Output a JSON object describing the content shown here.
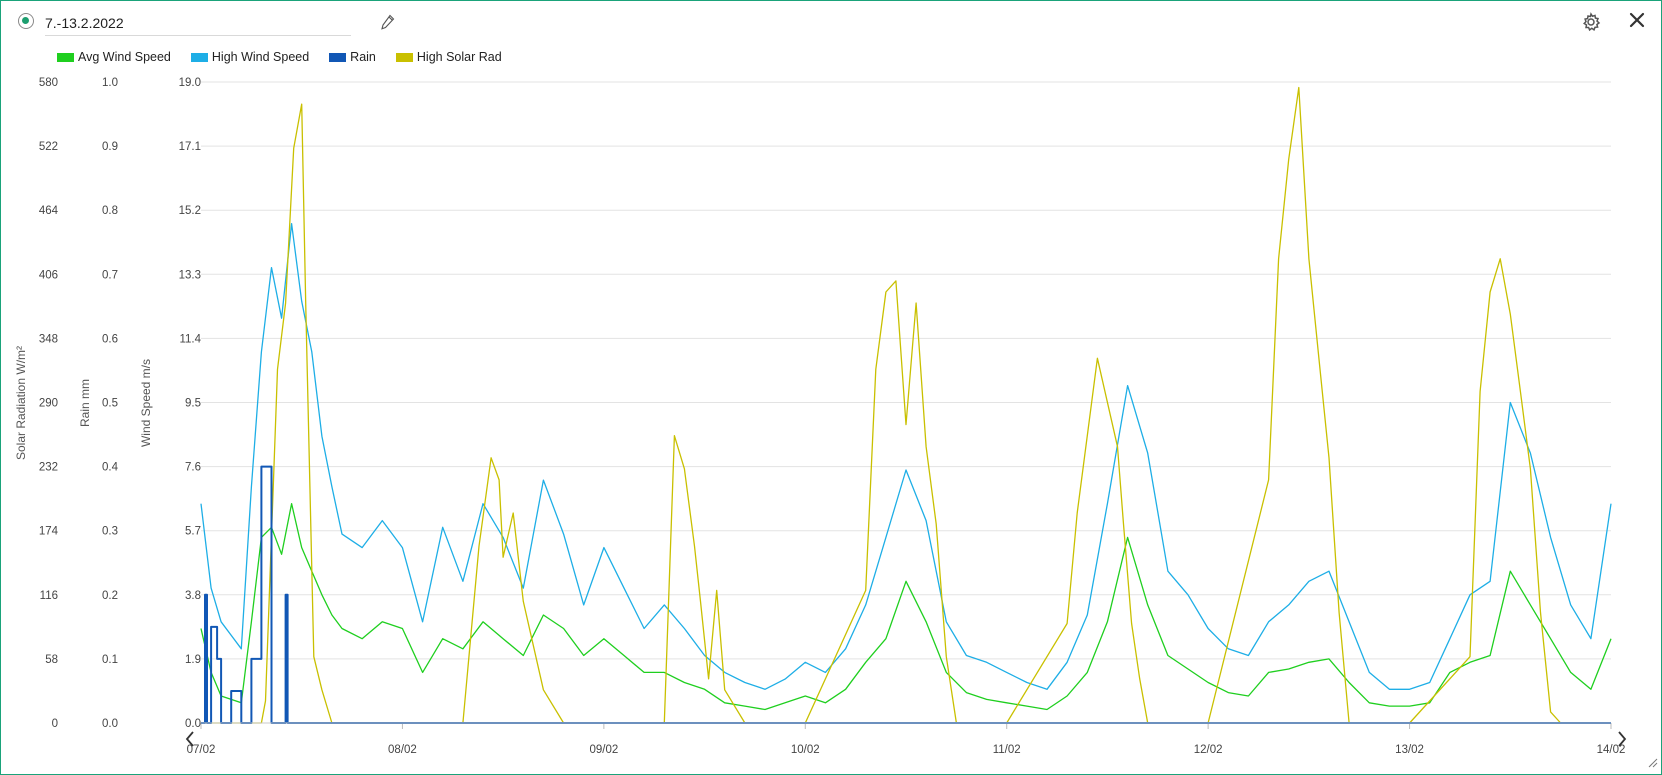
{
  "header": {
    "title_value": "7.-13.2.2022"
  },
  "icons": {
    "status": "radio-dot-icon",
    "edit": "pencil-icon",
    "settings": "gear-icon",
    "close": "close-icon",
    "prev": "chevron-left-icon",
    "next": "chevron-right-icon",
    "resize": "resize-grip-icon"
  },
  "colors": {
    "avg_wind": "#1fcf1f",
    "high_wind": "#1eaee6",
    "rain": "#1157b5",
    "solar": "#c9c000",
    "frame_border": "#1aa37a"
  },
  "legend": [
    {
      "label": "Avg Wind Speed",
      "color": "#1fcf1f"
    },
    {
      "label": "High Wind Speed",
      "color": "#1eaee6"
    },
    {
      "label": "Rain",
      "color": "#1157b5"
    },
    {
      "label": "High Solar Rad",
      "color": "#c9c000"
    }
  ],
  "chart_data": {
    "type": "line",
    "grid": true,
    "legend_position": "top-left",
    "x_axis": {
      "range": [
        "07/02",
        "14/02"
      ],
      "tick_labels": [
        "07/02",
        "08/02",
        "09/02",
        "10/02",
        "11/02",
        "12/02",
        "13/02",
        "14/02"
      ]
    },
    "y_axes": [
      {
        "label": "Solar Radiation W/m²",
        "range": [
          0,
          580
        ],
        "ticks": [
          "0",
          "58",
          "116",
          "174",
          "232",
          "290",
          "348",
          "406",
          "464",
          "522",
          "580"
        ]
      },
      {
        "label": "Rain mm",
        "range": [
          0,
          1.0
        ],
        "ticks": [
          "0.0",
          "0.1",
          "0.2",
          "0.3",
          "0.4",
          "0.5",
          "0.6",
          "0.7",
          "0.8",
          "0.9",
          "1.0"
        ]
      },
      {
        "label": "Wind Speed m/s",
        "range": [
          0,
          19.0
        ],
        "ticks": [
          "0.0",
          "1.9",
          "3.8",
          "5.7",
          "7.6",
          "9.5",
          "11.4",
          "13.3",
          "15.2",
          "17.1",
          "19.0"
        ]
      }
    ],
    "series": [
      {
        "name": "High Wind Speed",
        "axis": 2,
        "color": "#1eaee6",
        "x": [
          0,
          0.05,
          0.1,
          0.2,
          0.25,
          0.3,
          0.35,
          0.4,
          0.45,
          0.5,
          0.55,
          0.6,
          0.65,
          0.7,
          0.8,
          0.9,
          1.0,
          1.1,
          1.2,
          1.3,
          1.4,
          1.5,
          1.6,
          1.7,
          1.8,
          1.9,
          2.0,
          2.1,
          2.2,
          2.3,
          2.4,
          2.5,
          2.6,
          2.7,
          2.8,
          2.9,
          3.0,
          3.1,
          3.2,
          3.3,
          3.4,
          3.5,
          3.6,
          3.7,
          3.8,
          3.9,
          4.0,
          4.1,
          4.2,
          4.3,
          4.4,
          4.5,
          4.6,
          4.7,
          4.8,
          4.9,
          5.0,
          5.1,
          5.2,
          5.3,
          5.4,
          5.5,
          5.6,
          5.7,
          5.8,
          5.9,
          6.0,
          6.1,
          6.2,
          6.3,
          6.4,
          6.5,
          6.6,
          6.7,
          6.8,
          6.9,
          7.0
        ],
        "y": [
          6.5,
          4.0,
          3.0,
          2.2,
          7.0,
          11.0,
          13.5,
          12.0,
          14.8,
          12.5,
          11.0,
          8.5,
          7.0,
          5.6,
          5.2,
          6.0,
          5.2,
          3.0,
          5.8,
          4.2,
          6.5,
          5.5,
          4.0,
          7.2,
          5.6,
          3.5,
          5.2,
          4.0,
          2.8,
          3.5,
          2.8,
          2.0,
          1.5,
          1.2,
          1.0,
          1.3,
          1.8,
          1.5,
          2.2,
          3.5,
          5.5,
          7.5,
          6.0,
          3.0,
          2.0,
          1.8,
          1.5,
          1.2,
          1.0,
          1.8,
          3.2,
          6.5,
          10.0,
          8.0,
          4.5,
          3.8,
          2.8,
          2.2,
          2.0,
          3.0,
          3.5,
          4.2,
          4.5,
          3.0,
          1.5,
          1.0,
          1.0,
          1.2,
          2.5,
          3.8,
          4.2,
          9.5,
          8.0,
          5.5,
          3.5,
          2.5,
          6.5
        ]
      },
      {
        "name": "Avg Wind Speed",
        "axis": 2,
        "color": "#1fcf1f",
        "x": [
          0,
          0.05,
          0.1,
          0.2,
          0.25,
          0.3,
          0.35,
          0.4,
          0.45,
          0.5,
          0.55,
          0.6,
          0.65,
          0.7,
          0.8,
          0.9,
          1.0,
          1.1,
          1.2,
          1.3,
          1.4,
          1.5,
          1.6,
          1.7,
          1.8,
          1.9,
          2.0,
          2.1,
          2.2,
          2.3,
          2.4,
          2.5,
          2.6,
          2.7,
          2.8,
          2.9,
          3.0,
          3.1,
          3.2,
          3.3,
          3.4,
          3.5,
          3.6,
          3.7,
          3.8,
          3.9,
          4.0,
          4.1,
          4.2,
          4.3,
          4.4,
          4.5,
          4.6,
          4.7,
          4.8,
          4.9,
          5.0,
          5.1,
          5.2,
          5.3,
          5.4,
          5.5,
          5.6,
          5.7,
          5.8,
          5.9,
          6.0,
          6.1,
          6.2,
          6.3,
          6.4,
          6.5,
          6.6,
          6.7,
          6.8,
          6.9,
          7.0
        ],
        "y": [
          2.8,
          1.5,
          0.8,
          0.6,
          3.0,
          5.5,
          5.8,
          5.0,
          6.5,
          5.2,
          4.5,
          3.8,
          3.2,
          2.8,
          2.5,
          3.0,
          2.8,
          1.5,
          2.5,
          2.2,
          3.0,
          2.5,
          2.0,
          3.2,
          2.8,
          2.0,
          2.5,
          2.0,
          1.5,
          1.5,
          1.2,
          1.0,
          0.6,
          0.5,
          0.4,
          0.6,
          0.8,
          0.6,
          1.0,
          1.8,
          2.5,
          4.2,
          3.0,
          1.5,
          0.9,
          0.7,
          0.6,
          0.5,
          0.4,
          0.8,
          1.5,
          3.0,
          5.5,
          3.5,
          2.0,
          1.6,
          1.2,
          0.9,
          0.8,
          1.5,
          1.6,
          1.8,
          1.9,
          1.2,
          0.6,
          0.5,
          0.5,
          0.6,
          1.5,
          1.8,
          2.0,
          4.5,
          3.5,
          2.5,
          1.5,
          1.0,
          2.5
        ]
      },
      {
        "name": "High Solar Rad",
        "axis": 0,
        "color": "#c9c000",
        "x": [
          0,
          0.3,
          0.32,
          0.38,
          0.42,
          0.46,
          0.5,
          0.52,
          0.56,
          0.6,
          0.65,
          0.7,
          0.72,
          1.0,
          1.3,
          1.38,
          1.44,
          1.48,
          1.5,
          1.55,
          1.6,
          1.7,
          1.8,
          2.0,
          2.3,
          2.35,
          2.4,
          2.45,
          2.48,
          2.52,
          2.56,
          2.6,
          2.7,
          2.8,
          3.0,
          3.3,
          3.35,
          3.4,
          3.45,
          3.5,
          3.55,
          3.6,
          3.65,
          3.7,
          3.75,
          4.0,
          4.3,
          4.35,
          4.45,
          4.55,
          4.58,
          4.62,
          4.66,
          4.7,
          4.75,
          5.0,
          5.3,
          5.35,
          5.4,
          5.45,
          5.5,
          5.55,
          5.6,
          5.65,
          5.7,
          6.0,
          6.3,
          6.35,
          6.4,
          6.45,
          6.5,
          6.55,
          6.6,
          6.65,
          6.7,
          6.75,
          7.0
        ],
        "y": [
          0,
          0,
          20,
          320,
          380,
          520,
          560,
          380,
          60,
          30,
          0,
          0,
          0,
          0,
          0,
          160,
          240,
          220,
          150,
          190,
          110,
          30,
          0,
          0,
          0,
          260,
          230,
          160,
          110,
          40,
          120,
          30,
          0,
          0,
          0,
          120,
          320,
          390,
          400,
          270,
          380,
          250,
          180,
          60,
          0,
          0,
          90,
          190,
          330,
          250,
          180,
          90,
          40,
          0,
          0,
          0,
          220,
          420,
          510,
          575,
          420,
          330,
          240,
          100,
          0,
          0,
          60,
          300,
          390,
          420,
          370,
          300,
          230,
          100,
          10,
          0,
          0
        ]
      },
      {
        "name": "Rain",
        "axis": 1,
        "color": "#1157b5",
        "x": [
          0,
          0.02,
          0.03,
          0.05,
          0.08,
          0.1,
          0.15,
          0.2,
          0.25,
          0.3,
          0.35,
          0.4,
          0.42,
          0.43,
          0.45,
          7.0
        ],
        "y": [
          0,
          0.2,
          0,
          0.15,
          0.1,
          0,
          0.05,
          0,
          0.1,
          0.4,
          0,
          0,
          0.2,
          0,
          0,
          0
        ]
      }
    ]
  }
}
